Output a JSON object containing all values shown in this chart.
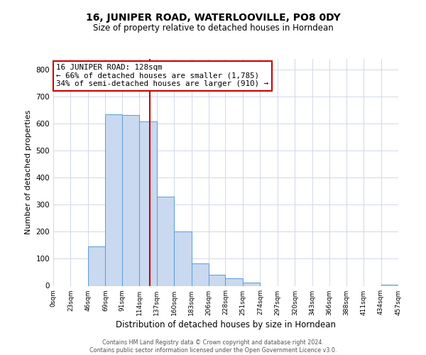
{
  "title": "16, JUNIPER ROAD, WATERLOOVILLE, PO8 0DY",
  "subtitle": "Size of property relative to detached houses in Horndean",
  "xlabel": "Distribution of detached houses by size in Horndean",
  "ylabel": "Number of detached properties",
  "bin_edges": [
    0,
    23,
    46,
    69,
    91,
    114,
    137,
    160,
    183,
    206,
    228,
    251,
    274,
    297,
    320,
    343,
    366,
    388,
    411,
    434,
    457
  ],
  "bar_heights": [
    0,
    0,
    145,
    635,
    632,
    607,
    330,
    200,
    83,
    42,
    27,
    12,
    0,
    0,
    0,
    0,
    0,
    0,
    0,
    3,
    0
  ],
  "tick_labels": [
    "0sqm",
    "23sqm",
    "46sqm",
    "69sqm",
    "91sqm",
    "114sqm",
    "137sqm",
    "160sqm",
    "183sqm",
    "206sqm",
    "228sqm",
    "251sqm",
    "274sqm",
    "297sqm",
    "320sqm",
    "343sqm",
    "366sqm",
    "388sqm",
    "411sqm",
    "434sqm",
    "457sqm"
  ],
  "bar_color": "#c8d9f0",
  "bar_edgecolor": "#5b9bd5",
  "vline_x": 128,
  "vline_color": "#cc0000",
  "annotation_box_edgecolor": "#cc0000",
  "annotation_lines": [
    "16 JUNIPER ROAD: 128sqm",
    "← 66% of detached houses are smaller (1,785)",
    "34% of semi-detached houses are larger (910) →"
  ],
  "ylim": [
    0,
    840
  ],
  "yticks": [
    0,
    100,
    200,
    300,
    400,
    500,
    600,
    700,
    800
  ],
  "footer_lines": [
    "Contains HM Land Registry data © Crown copyright and database right 2024.",
    "Contains public sector information licensed under the Open Government Licence v3.0."
  ],
  "background_color": "#ffffff",
  "grid_color": "#d0d8e8",
  "title_fontsize": 10,
  "subtitle_fontsize": 8.5,
  "ylabel_fontsize": 8,
  "xlabel_fontsize": 8.5,
  "ytick_fontsize": 7.5,
  "xtick_fontsize": 6.5,
  "annotation_fontsize": 7.8,
  "footer_fontsize": 5.8
}
